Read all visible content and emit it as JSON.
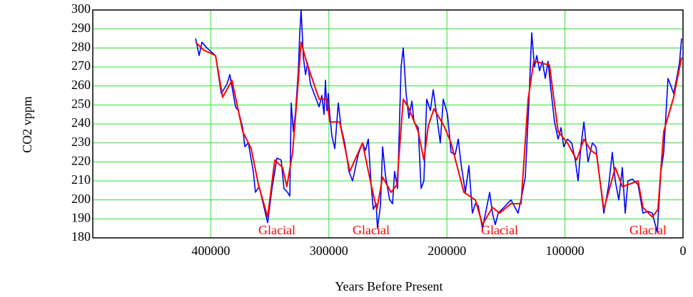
{
  "chart_data": {
    "type": "line",
    "x_label": "Years Before Present",
    "y_label": "CO2 vppm",
    "xlim": [
      500000,
      0
    ],
    "xticks": [
      400000,
      300000,
      200000,
      100000,
      0
    ],
    "ylim": [
      180,
      300
    ],
    "yticks": [
      180,
      190,
      200,
      210,
      220,
      230,
      240,
      250,
      260,
      270,
      280,
      290,
      300
    ],
    "grid": true,
    "annotations": [
      "Glacial",
      "Glacial",
      "Glacial",
      "Glacial"
    ],
    "annotation_color": "#ff0000",
    "series": [
      {
        "color": "#0000ff",
        "x": [
          412900,
          409900,
          407500,
          403300,
          396000,
          391200,
          386300,
          383900,
          379100,
          376700,
          373000,
          371200,
          368200,
          364000,
          362200,
          359100,
          354900,
          351900,
          348200,
          344000,
          340400,
          338000,
          335000,
          333100,
          331900,
          330100,
          328300,
          325900,
          324700,
          323500,
          321600,
          319800,
          318000,
          315600,
          312600,
          308300,
          305900,
          304100,
          302900,
          301700,
          300500,
          299300,
          297500,
          295000,
          292000,
          289600,
          286600,
          283000,
          279900,
          275100,
          271500,
          269000,
          266600,
          264200,
          262400,
          260000,
          258800,
          256300,
          254500,
          252100,
          248500,
          246100,
          244300,
          241800,
          238800,
          237000,
          234600,
          232200,
          229700,
          227900,
          224300,
          221900,
          219500,
          217100,
          214000,
          211600,
          209200,
          205600,
          203100,
          199500,
          196500,
          192900,
          190400,
          188000,
          184400,
          181400,
          178400,
          175900,
          173500,
          169900,
          166300,
          163800,
          161400,
          159000,
          156600,
          151800,
          145700,
          139700,
          136000,
          133600,
          130600,
          128200,
          125800,
          123900,
          121500,
          119100,
          116700,
          114300,
          111900,
          108800,
          105800,
          103400,
          101000,
          97900,
          94300,
          91300,
          88900,
          86500,
          84000,
          80400,
          76800,
          73800,
          70700,
          67100,
          62900,
          59900,
          57400,
          54400,
          51400,
          49000,
          46600,
          42900,
          38100,
          33900,
          29600,
          26000,
          21800,
          18700,
          16300,
          12700,
          10300,
          7900,
          5400,
          3000,
          1200
        ],
        "values": [
          285,
          276,
          283,
          280,
          276,
          256,
          261,
          266,
          249,
          247,
          238,
          228,
          230,
          215,
          204,
          207,
          196,
          188,
          206,
          222,
          221,
          206,
          204,
          202,
          251,
          236,
          246,
          268,
          287,
          300,
          275,
          266,
          272,
          261,
          256,
          249,
          255,
          245,
          263,
          247,
          256,
          245,
          234,
          227,
          251,
          238,
          230,
          215,
          210,
          224,
          230,
          226,
          232,
          208,
          195,
          198,
          185,
          197,
          228,
          213,
          200,
          198,
          215,
          206,
          270,
          280,
          256,
          243,
          252,
          241,
          238,
          206,
          210,
          253,
          247,
          258,
          247,
          230,
          253,
          245,
          225,
          224,
          232,
          219,
          204,
          218,
          193,
          198,
          197,
          185,
          196,
          204,
          193,
          187,
          193,
          196,
          200,
          193,
          204,
          212,
          251,
          288,
          270,
          276,
          268,
          273,
          264,
          273,
          258,
          241,
          232,
          238,
          228,
          232,
          230,
          221,
          210,
          228,
          241,
          220,
          230,
          228,
          212,
          193,
          208,
          225,
          210,
          200,
          217,
          193,
          210,
          211,
          208,
          193,
          194,
          193,
          183,
          215,
          225,
          264,
          260,
          256,
          264,
          272,
          285
        ]
      },
      {
        "color": "#ff0000",
        "x": [
          412900,
          406300,
          396000,
          390000,
          382100,
          373000,
          365800,
          359700,
          351900,
          345800,
          339200,
          335600,
          330700,
          327100,
          323500,
          318600,
          308300,
          301700,
          299300,
          290800,
          282300,
          271500,
          264200,
          259400,
          254500,
          247300,
          242400,
          237000,
          232800,
          224300,
          219500,
          215800,
          211000,
          202500,
          196500,
          185600,
          175900,
          169900,
          161400,
          155400,
          145700,
          137200,
          131200,
          126400,
          113100,
          105800,
          97900,
          90100,
          84000,
          78000,
          73200,
          67100,
          57400,
          51400,
          46600,
          38100,
          33900,
          26000,
          21200,
          16300,
          7900,
          1200
        ],
        "values": [
          283,
          279,
          276,
          254,
          263,
          236,
          227,
          208,
          191,
          221,
          217,
          207,
          225,
          253,
          283,
          272,
          253,
          253,
          241,
          241,
          215,
          230,
          208,
          195,
          212,
          204,
          208,
          253,
          249,
          236,
          221,
          239,
          248,
          239,
          230,
          204,
          200,
          187,
          196,
          193,
          198,
          198,
          253,
          273,
          271,
          236,
          230,
          221,
          232,
          226,
          224,
          195,
          217,
          207,
          208,
          210,
          196,
          191,
          195,
          236,
          254,
          275
        ]
      }
    ]
  }
}
